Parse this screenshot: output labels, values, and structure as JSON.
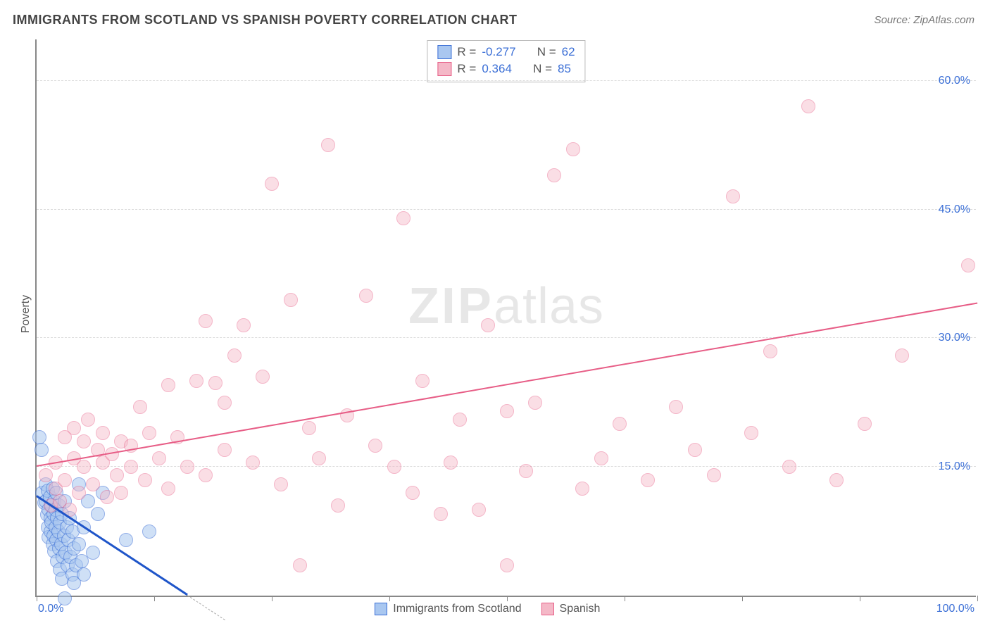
{
  "title": "IMMIGRANTS FROM SCOTLAND VS SPANISH POVERTY CORRELATION CHART",
  "source": "Source: ZipAtlas.com",
  "ylabel": "Poverty",
  "watermark_zip": "ZIP",
  "watermark_atlas": "atlas",
  "chart": {
    "type": "scatter",
    "xlim": [
      0,
      100
    ],
    "ylim": [
      0,
      65
    ],
    "x_tick_label_min": "0.0%",
    "x_tick_label_max": "100.0%",
    "x_tick_positions": [
      0,
      12.5,
      25,
      37.5,
      50,
      62.5,
      75,
      87.5,
      100
    ],
    "y_grid": [
      {
        "v": 15,
        "label": "15.0%"
      },
      {
        "v": 30,
        "label": "30.0%"
      },
      {
        "v": 45,
        "label": "45.0%"
      },
      {
        "v": 60,
        "label": "60.0%"
      }
    ],
    "grid_color": "#dcdcdc",
    "background_color": "#ffffff",
    "marker_radius": 10,
    "series": [
      {
        "id": "scotland",
        "label": "Immigrants from Scotland",
        "fill": "#a9c7f0",
        "stroke": "#3b6fd6",
        "fill_opacity": 0.55,
        "R": "-0.277",
        "N": "62",
        "trend": {
          "x1": 0,
          "y1": 11.5,
          "x2": 16,
          "y2": 0,
          "color": "#1f55c9",
          "width": 3,
          "dash_extend_to": 20
        },
        "points": [
          [
            0.3,
            18.5
          ],
          [
            0.5,
            17.0
          ],
          [
            0.6,
            12.0
          ],
          [
            0.8,
            10.8
          ],
          [
            1.0,
            13.0
          ],
          [
            1.0,
            11.0
          ],
          [
            1.1,
            9.4
          ],
          [
            1.2,
            8.0
          ],
          [
            1.2,
            12.2
          ],
          [
            1.3,
            10.0
          ],
          [
            1.3,
            6.8
          ],
          [
            1.4,
            11.5
          ],
          [
            1.5,
            9.0
          ],
          [
            1.5,
            7.5
          ],
          [
            1.6,
            8.5
          ],
          [
            1.6,
            10.5
          ],
          [
            1.7,
            6.0
          ],
          [
            1.7,
            12.5
          ],
          [
            1.8,
            9.5
          ],
          [
            1.8,
            7.0
          ],
          [
            1.9,
            11.0
          ],
          [
            1.9,
            5.2
          ],
          [
            2.0,
            8.0
          ],
          [
            2.0,
            10.0
          ],
          [
            2.1,
            6.5
          ],
          [
            2.1,
            12.0
          ],
          [
            2.2,
            9.0
          ],
          [
            2.2,
            4.0
          ],
          [
            2.3,
            7.5
          ],
          [
            2.4,
            10.5
          ],
          [
            2.4,
            5.5
          ],
          [
            2.5,
            3.0
          ],
          [
            2.5,
            8.5
          ],
          [
            2.6,
            6.0
          ],
          [
            2.7,
            2.0
          ],
          [
            2.7,
            9.5
          ],
          [
            2.8,
            4.5
          ],
          [
            2.9,
            7.0
          ],
          [
            3.0,
            11.0
          ],
          [
            3.0,
            -0.3
          ],
          [
            3.1,
            5.0
          ],
          [
            3.2,
            8.0
          ],
          [
            3.3,
            3.5
          ],
          [
            3.4,
            6.5
          ],
          [
            3.5,
            9.0
          ],
          [
            3.6,
            4.5
          ],
          [
            3.8,
            2.5
          ],
          [
            3.8,
            7.5
          ],
          [
            4.0,
            5.5
          ],
          [
            4.0,
            1.5
          ],
          [
            4.2,
            3.5
          ],
          [
            4.5,
            6.0
          ],
          [
            4.5,
            13.0
          ],
          [
            4.8,
            4.0
          ],
          [
            5.0,
            2.5
          ],
          [
            5.0,
            8.0
          ],
          [
            5.5,
            11.0
          ],
          [
            6.0,
            5.0
          ],
          [
            6.5,
            9.5
          ],
          [
            7.0,
            12.0
          ],
          [
            9.5,
            6.5
          ],
          [
            12.0,
            7.5
          ]
        ]
      },
      {
        "id": "spanish",
        "label": "Spanish",
        "fill": "#f4b8c7",
        "stroke": "#e75d86",
        "fill_opacity": 0.45,
        "R": "0.364",
        "N": "85",
        "trend": {
          "x1": 0,
          "y1": 15.0,
          "x2": 100,
          "y2": 34.0,
          "color": "#e75d86",
          "width": 2.5
        },
        "points": [
          [
            1.0,
            14.0
          ],
          [
            1.5,
            10.5
          ],
          [
            2.0,
            12.5
          ],
          [
            2.0,
            15.5
          ],
          [
            2.5,
            11.0
          ],
          [
            3.0,
            13.5
          ],
          [
            3.0,
            18.5
          ],
          [
            3.5,
            10.0
          ],
          [
            4.0,
            16.0
          ],
          [
            4.0,
            19.5
          ],
          [
            4.5,
            12.0
          ],
          [
            5.0,
            15.0
          ],
          [
            5.0,
            18.0
          ],
          [
            5.5,
            20.5
          ],
          [
            6.0,
            13.0
          ],
          [
            6.5,
            17.0
          ],
          [
            7.0,
            19.0
          ],
          [
            7.0,
            15.5
          ],
          [
            7.5,
            11.5
          ],
          [
            8.0,
            16.5
          ],
          [
            8.5,
            14.0
          ],
          [
            9.0,
            18.0
          ],
          [
            9.0,
            12.0
          ],
          [
            10.0,
            17.5
          ],
          [
            10.0,
            15.0
          ],
          [
            11.0,
            22.0
          ],
          [
            11.5,
            13.5
          ],
          [
            12.0,
            19.0
          ],
          [
            13.0,
            16.0
          ],
          [
            14.0,
            24.5
          ],
          [
            14.0,
            12.5
          ],
          [
            15.0,
            18.5
          ],
          [
            16.0,
            15.0
          ],
          [
            17.0,
            25.0
          ],
          [
            18.0,
            14.0
          ],
          [
            18.0,
            32.0
          ],
          [
            19.0,
            24.8
          ],
          [
            20.0,
            17.0
          ],
          [
            20.0,
            22.5
          ],
          [
            21.0,
            28.0
          ],
          [
            22.0,
            31.5
          ],
          [
            23.0,
            15.5
          ],
          [
            24.0,
            25.5
          ],
          [
            25.0,
            48.0
          ],
          [
            26.0,
            13.0
          ],
          [
            27.0,
            34.5
          ],
          [
            28.0,
            3.5
          ],
          [
            29.0,
            19.5
          ],
          [
            30.0,
            16.0
          ],
          [
            31.0,
            52.5
          ],
          [
            32.0,
            10.5
          ],
          [
            33.0,
            21.0
          ],
          [
            35.0,
            35.0
          ],
          [
            36.0,
            17.5
          ],
          [
            38.0,
            15.0
          ],
          [
            39.0,
            44.0
          ],
          [
            40.0,
            12.0
          ],
          [
            41.0,
            25.0
          ],
          [
            43.0,
            9.5
          ],
          [
            44.0,
            15.5
          ],
          [
            45.0,
            20.5
          ],
          [
            47.0,
            10.0
          ],
          [
            48.0,
            31.5
          ],
          [
            50.0,
            21.5
          ],
          [
            50.0,
            3.5
          ],
          [
            52.0,
            14.5
          ],
          [
            53.0,
            22.5
          ],
          [
            55.0,
            49.0
          ],
          [
            57.0,
            52.0
          ],
          [
            58.0,
            12.5
          ],
          [
            60.0,
            16.0
          ],
          [
            62.0,
            20.0
          ],
          [
            65.0,
            13.5
          ],
          [
            68.0,
            22.0
          ],
          [
            70.0,
            17.0
          ],
          [
            72.0,
            14.0
          ],
          [
            74.0,
            46.5
          ],
          [
            76.0,
            19.0
          ],
          [
            78.0,
            28.5
          ],
          [
            80.0,
            15.0
          ],
          [
            82.0,
            57.0
          ],
          [
            85.0,
            13.5
          ],
          [
            88.0,
            20.0
          ],
          [
            92.0,
            28.0
          ],
          [
            99.0,
            38.5
          ]
        ]
      }
    ]
  },
  "legend_bottom": [
    {
      "label": "Immigrants from Scotland",
      "fill": "#a9c7f0",
      "stroke": "#3b6fd6"
    },
    {
      "label": "Spanish",
      "fill": "#f4b8c7",
      "stroke": "#e75d86"
    }
  ]
}
